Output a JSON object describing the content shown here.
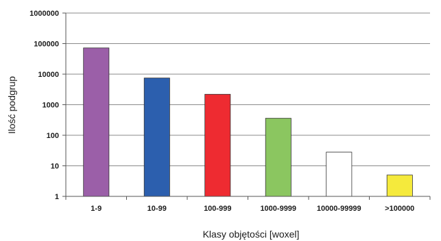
{
  "chart_data": {
    "type": "bar",
    "title": "",
    "xlabel": "Klasy objętości [woxel]",
    "ylabel": "Ilość podgrup",
    "yscale": "log",
    "ylim": [
      1,
      1000000
    ],
    "yticks": [
      {
        "value": 1,
        "label": "1"
      },
      {
        "value": 10,
        "label": "10"
      },
      {
        "value": 100,
        "label": "100"
      },
      {
        "value": 1000,
        "label": "1000"
      },
      {
        "value": 10000,
        "label": "10000"
      },
      {
        "value": 100000,
        "label": "100000"
      },
      {
        "value": 1000000,
        "label": "1000000"
      }
    ],
    "categories": [
      "1-9",
      "10-99",
      "100-999",
      "1000-9999",
      "10000-99999",
      ">100000"
    ],
    "values": [
      72000,
      7500,
      2200,
      360,
      28,
      5
    ],
    "colors": [
      "#9b5fa8",
      "#2c5fae",
      "#ee2b31",
      "#8bc660",
      "#ffffff",
      "#f5ea3c"
    ],
    "grid": true,
    "legend": "none"
  }
}
